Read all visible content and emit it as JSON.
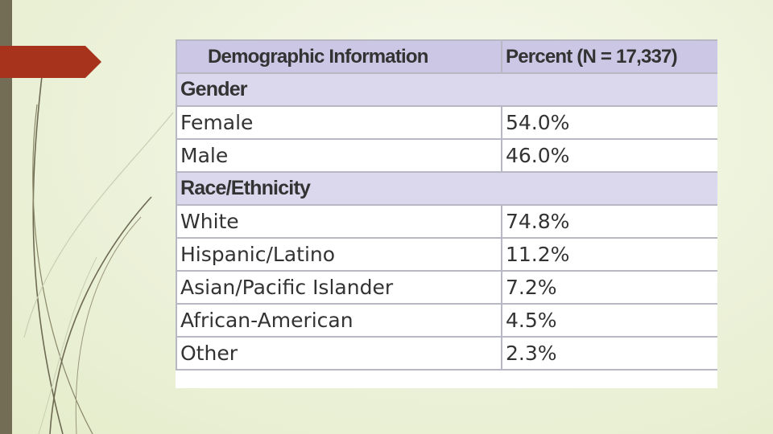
{
  "table": {
    "headers": [
      "Demographic Information",
      "Percent (N = 17,337)"
    ],
    "sections": [
      {
        "title": "Gender",
        "rows": [
          {
            "label": "Female",
            "value": "54.0%"
          },
          {
            "label": "Male",
            "value": "46.0%"
          }
        ]
      },
      {
        "title": "Race/Ethnicity",
        "rows": [
          {
            "label": "White",
            "value": "74.8%"
          },
          {
            "label": "Hispanic/Latino",
            "value": "11.2%"
          },
          {
            "label": "Asian/Pacific Islander",
            "value": "7.2%"
          },
          {
            "label": "African-American",
            "value": "4.5%"
          },
          {
            "label": "Other",
            "value": "2.3%"
          }
        ]
      }
    ]
  },
  "colors": {
    "header_bg": "#cbc7e5",
    "section_bg": "#dbd8ed",
    "accent_arrow": "#a8331c",
    "left_bar": "#736d55",
    "background": "#eef3dd"
  }
}
